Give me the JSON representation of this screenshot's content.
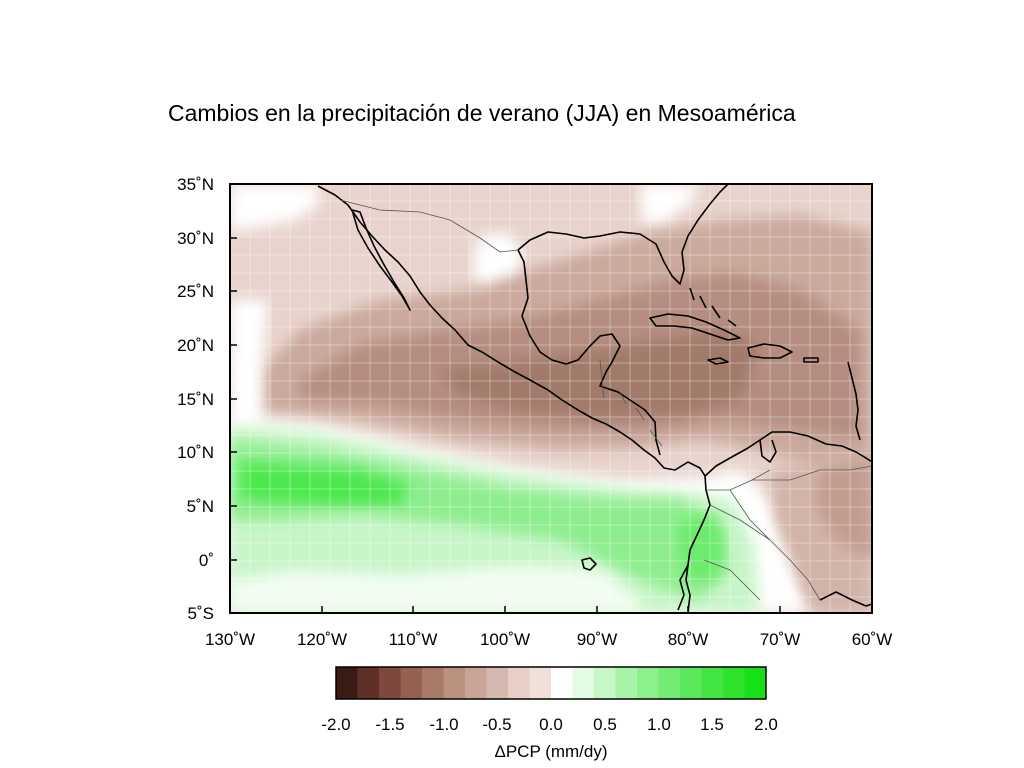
{
  "title": "Cambios en la precipitación de verano (JJA) en Mesoamérica",
  "map": {
    "lon_labels": [
      "130˚W",
      "120˚W",
      "110˚W",
      "100˚W",
      "90˚W",
      "80˚W",
      "70˚W",
      "60˚W"
    ],
    "lat_labels": [
      "35˚N",
      "30˚N",
      "25˚N",
      "20˚N",
      "15˚N",
      "10˚N",
      "5˚N",
      "0˚",
      "5˚S"
    ],
    "lon_range": [
      -130,
      -60
    ],
    "lat_range": [
      -5,
      35
    ],
    "region": "Mesoamerica"
  },
  "colorbar": {
    "label": "ΔPCP (mm/dy)",
    "tick_labels": [
      "-2.0",
      "-1.5",
      "-1.0",
      "-0.5",
      "0.0",
      "0.5",
      "1.0",
      "1.5",
      "2.0"
    ],
    "range": [
      -2.0,
      2.0
    ],
    "colors": [
      "#3b1c14",
      "#5e3027",
      "#7d483d",
      "#94604f",
      "#a97a68",
      "#ba907f",
      "#c9a497",
      "#d6b9ae",
      "#e6cfc6",
      "#f1e0da",
      "#ffffff",
      "#e3fbe3",
      "#c6f7c6",
      "#a8f3a8",
      "#8cf08c",
      "#72ec72",
      "#5ae85a",
      "#44e444",
      "#2ee22e",
      "#18e018"
    ]
  },
  "colors": {
    "dry_dark": "#8f5f51",
    "dry_mid": "#b58e81",
    "dry_light": "#e8d4cd",
    "wet_light": "#c8f5c8",
    "wet_strong": "#3ee63e",
    "coast": "#000000"
  }
}
